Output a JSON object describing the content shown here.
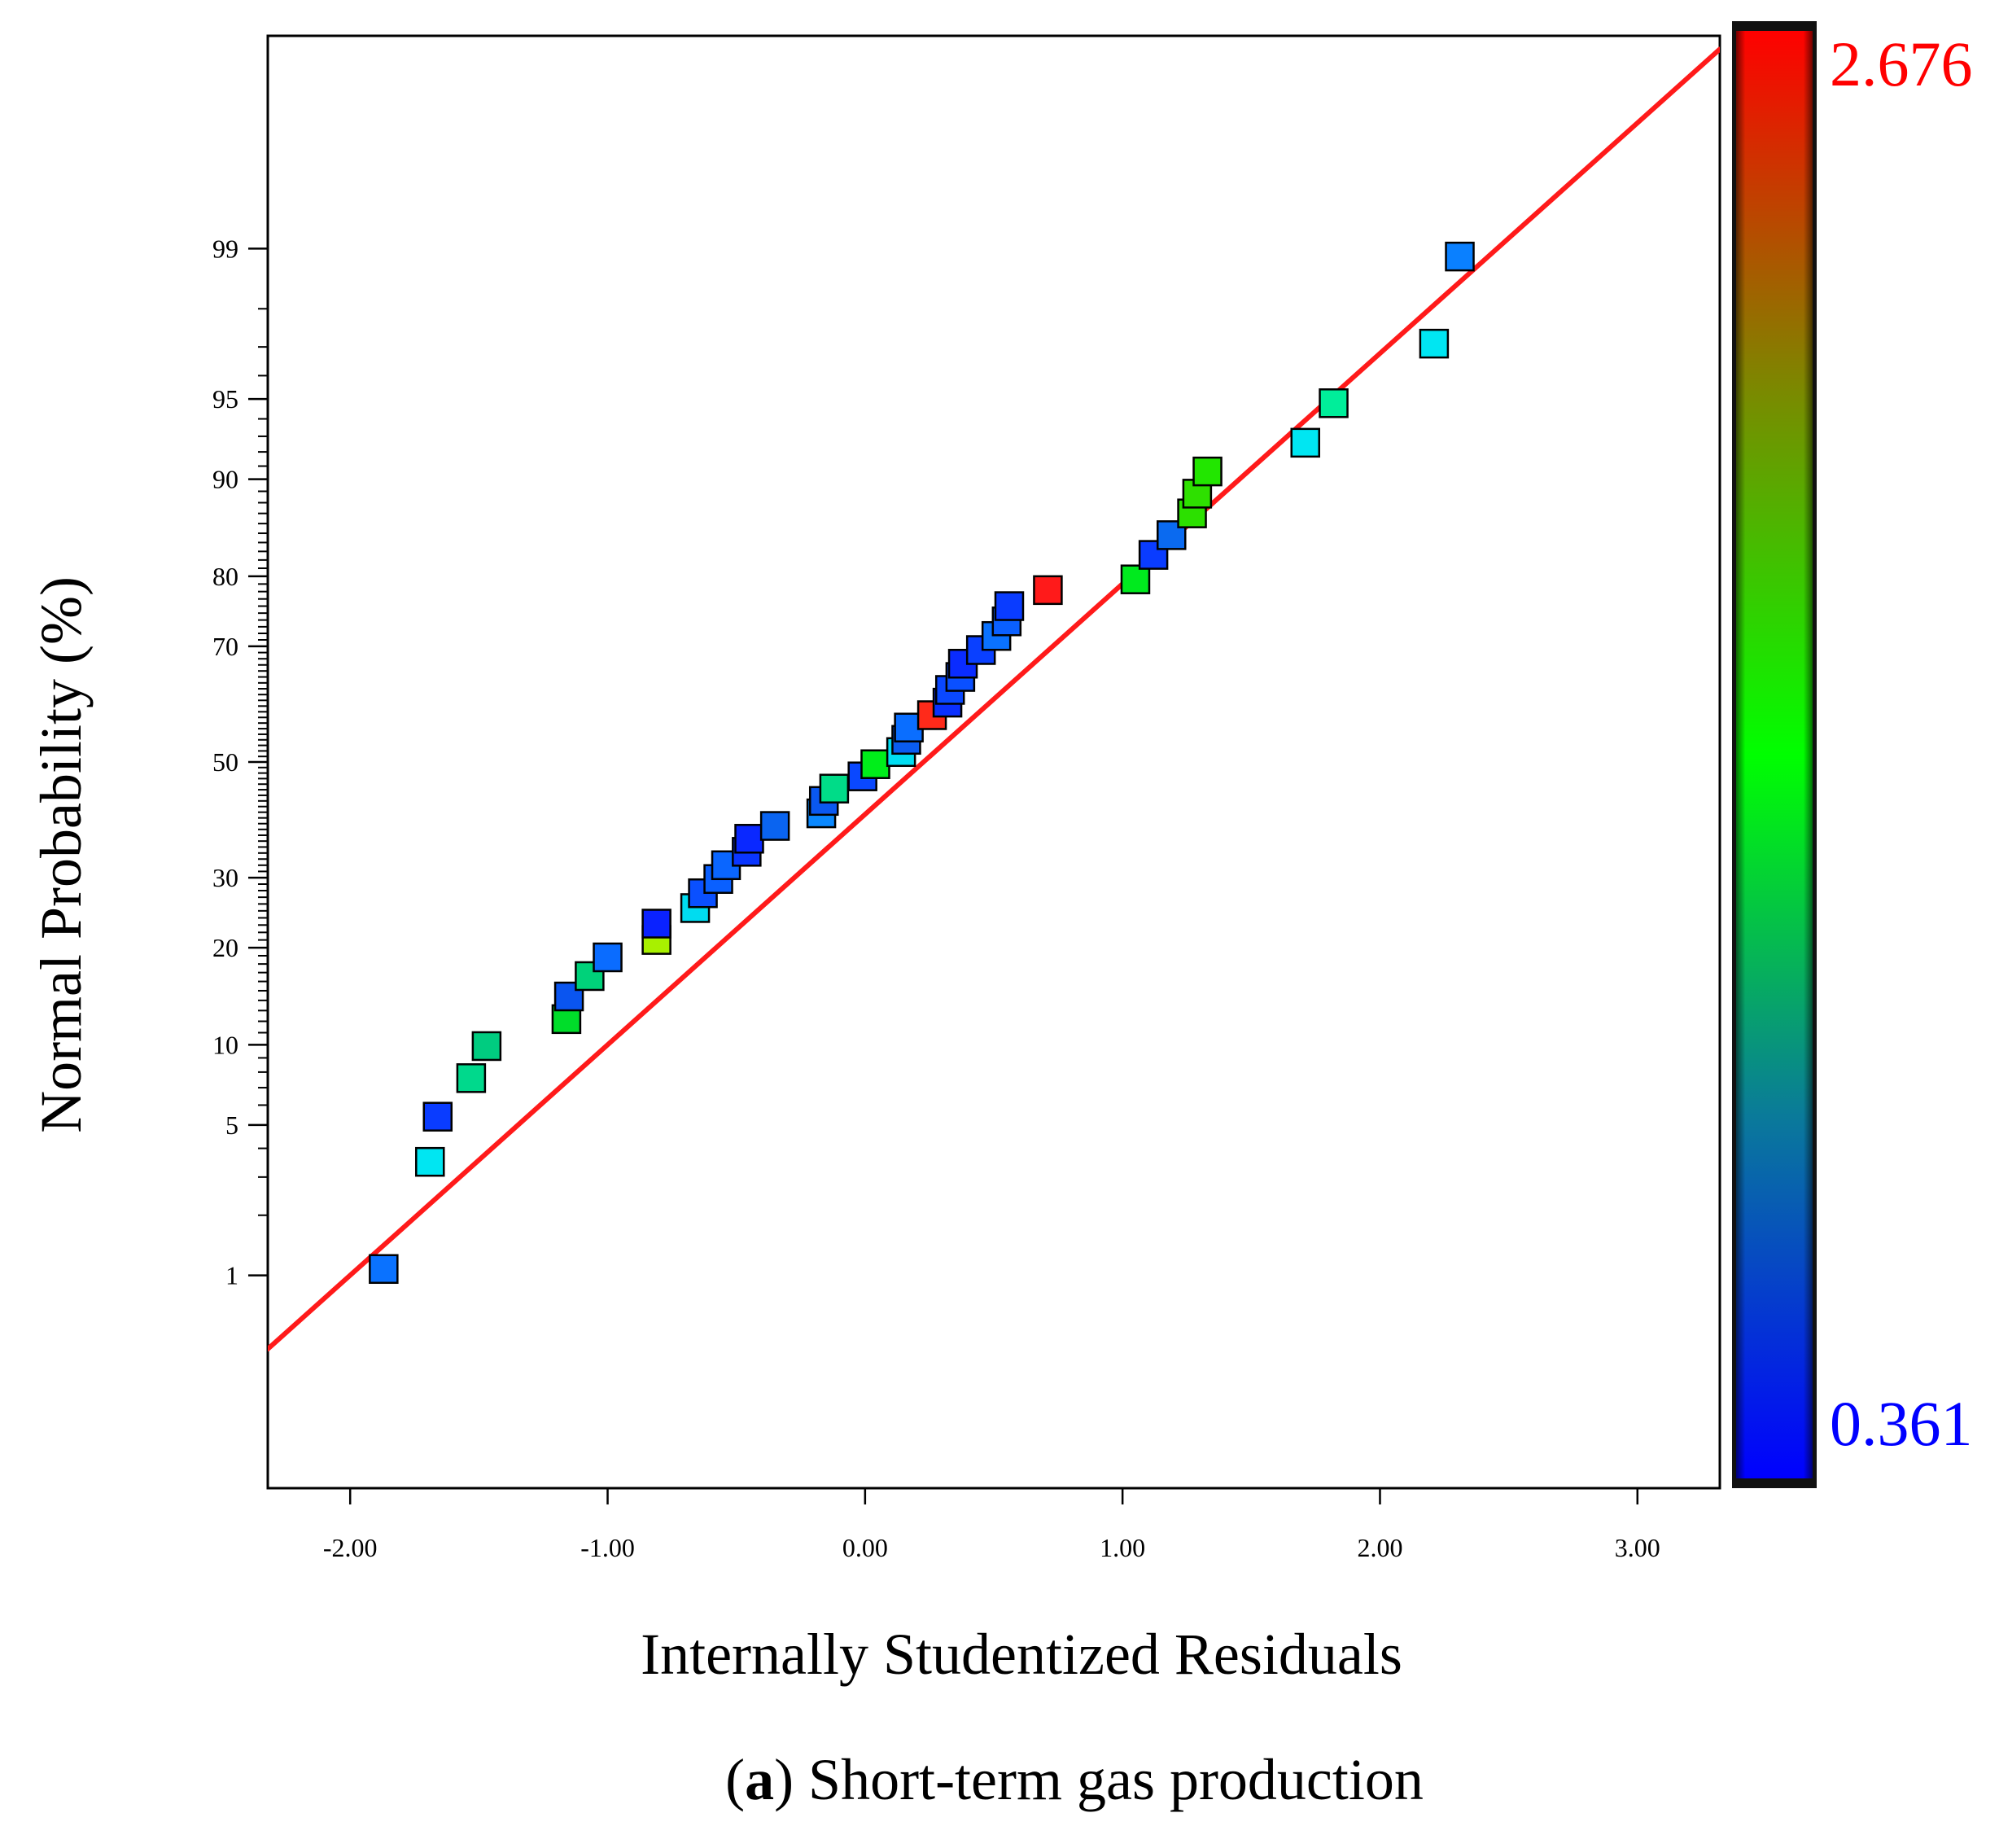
{
  "chart_data": {
    "type": "scatter",
    "title": "",
    "xlabel": "Internally Studentized Residuals",
    "ylabel": "Normal Probability (%)",
    "caption": {
      "prefix": "(",
      "bold": "a",
      "suffix": ") Short-term gas production"
    },
    "xlim": [
      -2.32,
      3.32
    ],
    "x_ticks": [
      -2.0,
      -1.0,
      0.0,
      1.0,
      2.0,
      3.0
    ],
    "x_tick_labels": [
      "-2.00",
      "-1.00",
      "0.00",
      "1.00",
      "2.00",
      "3.00"
    ],
    "y_scale": "normal-probability",
    "ylim_percent": [
      0.05,
      99.95
    ],
    "y_tick_labels": [
      "1",
      "5",
      "10",
      "20",
      "30",
      "50",
      "70",
      "80",
      "90",
      "95",
      "99"
    ],
    "y_ticks": [
      1,
      5,
      10,
      20,
      30,
      50,
      70,
      80,
      90,
      95,
      99
    ],
    "y_minor_ticks": [
      2,
      3,
      4,
      6,
      7,
      8,
      9,
      11,
      12,
      13,
      14,
      15,
      16,
      17,
      18,
      19,
      21,
      22,
      23,
      24,
      25,
      26,
      27,
      28,
      29,
      31,
      32,
      33,
      34,
      35,
      36,
      37,
      38,
      39,
      40,
      41,
      42,
      43,
      44,
      45,
      46,
      47,
      48,
      49,
      51,
      52,
      53,
      54,
      55,
      56,
      57,
      58,
      59,
      60,
      61,
      62,
      63,
      64,
      65,
      66,
      67,
      68,
      69,
      71,
      72,
      73,
      74,
      75,
      76,
      77,
      78,
      79,
      81,
      82,
      83,
      84,
      85,
      86,
      87,
      88,
      89,
      91,
      92,
      93,
      94,
      96,
      97,
      98
    ],
    "reference_line": {
      "color": "#ff1a1a",
      "x_start": -2.32,
      "x_end": 3.32,
      "z_start": -2.66,
      "z_end": 3.23
    },
    "colorbar": {
      "min": 0.361,
      "max": 2.676,
      "min_label": "0.361",
      "max_label": "2.676",
      "min_color": "#0000ff",
      "max_color": "#ff0000"
    },
    "points": [
      {
        "x": -1.87,
        "p": 1.08,
        "color": "#0a72ff"
      },
      {
        "x": -1.69,
        "p": 3.5,
        "color": "#00e6f2"
      },
      {
        "x": -1.66,
        "p": 5.4,
        "color": "#0a3cff"
      },
      {
        "x": -1.53,
        "p": 7.6,
        "color": "#00d98c"
      },
      {
        "x": -1.47,
        "p": 9.9,
        "color": "#00cc80"
      },
      {
        "x": -1.16,
        "p": 12.2,
        "color": "#00dd2a"
      },
      {
        "x": -1.15,
        "p": 14.4,
        "color": "#0a55f0"
      },
      {
        "x": -1.07,
        "p": 16.6,
        "color": "#00d27a"
      },
      {
        "x": -1.0,
        "p": 18.8,
        "color": "#0a6cff"
      },
      {
        "x": -0.81,
        "p": 21.0,
        "color": "#a8f000"
      },
      {
        "x": -0.81,
        "p": 23.2,
        "color": "#0a22ff"
      },
      {
        "x": -0.66,
        "p": 25.4,
        "color": "#00dcf0"
      },
      {
        "x": -0.63,
        "p": 27.6,
        "color": "#0a50ff"
      },
      {
        "x": -0.57,
        "p": 29.8,
        "color": "#0a60ff"
      },
      {
        "x": -0.54,
        "p": 32.0,
        "color": "#0a66ff"
      },
      {
        "x": -0.46,
        "p": 34.2,
        "color": "#0a36ff"
      },
      {
        "x": -0.45,
        "p": 36.4,
        "color": "#0a28ff"
      },
      {
        "x": -0.35,
        "p": 38.6,
        "color": "#0a64f0"
      },
      {
        "x": -0.17,
        "p": 40.8,
        "color": "#0a88ff"
      },
      {
        "x": -0.16,
        "p": 43.0,
        "color": "#0a58f0"
      },
      {
        "x": -0.12,
        "p": 45.2,
        "color": "#00dc88"
      },
      {
        "x": -0.01,
        "p": 47.4,
        "color": "#0a48ff"
      },
      {
        "x": 0.04,
        "p": 49.6,
        "color": "#00ee1a"
      },
      {
        "x": 0.14,
        "p": 51.8,
        "color": "#00ddf2"
      },
      {
        "x": 0.16,
        "p": 54.0,
        "color": "#0a5cf0"
      },
      {
        "x": 0.17,
        "p": 56.2,
        "color": "#0a6eff"
      },
      {
        "x": 0.26,
        "p": 58.4,
        "color": "#ff2a1a"
      },
      {
        "x": 0.32,
        "p": 60.6,
        "color": "#0a30ff"
      },
      {
        "x": 0.33,
        "p": 62.8,
        "color": "#0a48ff"
      },
      {
        "x": 0.37,
        "p": 65.0,
        "color": "#0a50ff"
      },
      {
        "x": 0.38,
        "p": 67.2,
        "color": "#0a2cff"
      },
      {
        "x": 0.45,
        "p": 69.4,
        "color": "#0a40ff"
      },
      {
        "x": 0.51,
        "p": 71.6,
        "color": "#0a72ff"
      },
      {
        "x": 0.55,
        "p": 73.8,
        "color": "#0a60ff"
      },
      {
        "x": 0.56,
        "p": 76.0,
        "color": "#0a3cff"
      },
      {
        "x": 0.71,
        "p": 78.2,
        "color": "#ff1a1a"
      },
      {
        "x": 1.05,
        "p": 79.6,
        "color": "#00ea1e"
      },
      {
        "x": 1.12,
        "p": 82.6,
        "color": "#0a3cff"
      },
      {
        "x": 1.19,
        "p": 84.8,
        "color": "#0a6af0"
      },
      {
        "x": 1.27,
        "p": 87.0,
        "color": "#2ce000"
      },
      {
        "x": 1.29,
        "p": 88.8,
        "color": "#2ee000"
      },
      {
        "x": 1.33,
        "p": 90.6,
        "color": "#22e600"
      },
      {
        "x": 1.71,
        "p": 92.6,
        "color": "#00e6f2"
      },
      {
        "x": 1.82,
        "p": 94.8,
        "color": "#00ee9a"
      },
      {
        "x": 2.21,
        "p": 97.1,
        "color": "#00e6f2"
      },
      {
        "x": 2.31,
        "p": 98.9,
        "color": "#0a80ff"
      }
    ]
  }
}
